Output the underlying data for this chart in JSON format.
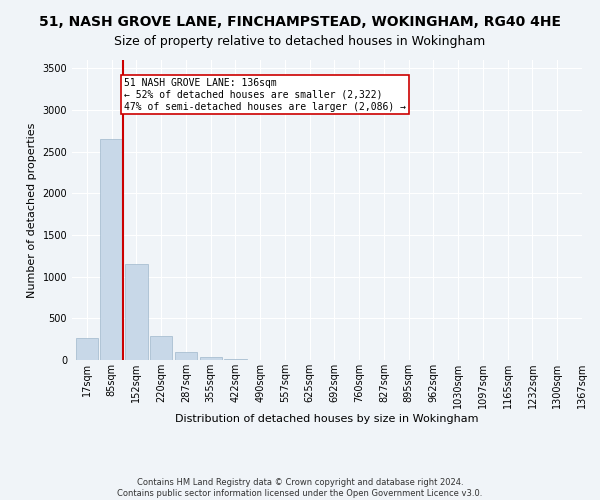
{
  "title1": "51, NASH GROVE LANE, FINCHAMPSTEAD, WOKINGHAM, RG40 4HE",
  "title2": "Size of property relative to detached houses in Wokingham",
  "xlabel": "Distribution of detached houses by size in Wokingham",
  "ylabel": "Number of detached properties",
  "footer1": "Contains HM Land Registry data © Crown copyright and database right 2024.",
  "footer2": "Contains public sector information licensed under the Open Government Licence v3.0.",
  "bins": [
    "17sqm",
    "85sqm",
    "152sqm",
    "220sqm",
    "287sqm",
    "355sqm",
    "422sqm",
    "490sqm",
    "557sqm",
    "625sqm",
    "692sqm",
    "760sqm",
    "827sqm",
    "895sqm",
    "962sqm",
    "1030sqm",
    "1097sqm",
    "1165sqm",
    "1232sqm",
    "1300sqm",
    "1367sqm"
  ],
  "values": [
    270,
    2650,
    1150,
    290,
    100,
    40,
    10,
    0,
    0,
    0,
    0,
    0,
    0,
    0,
    0,
    0,
    0,
    0,
    0,
    0
  ],
  "bar_color": "#c8d8e8",
  "bar_edge_color": "#a0b8cc",
  "property_line_color": "#cc0000",
  "annotation_text": "51 NASH GROVE LANE: 136sqm\n← 52% of detached houses are smaller (2,322)\n47% of semi-detached houses are larger (2,086) →",
  "annotation_box_color": "#ffffff",
  "annotation_box_edge": "#cc0000",
  "ylim": [
    0,
    3600
  ],
  "background_color": "#f0f4f8",
  "plot_bg_color": "#f0f4f8",
  "grid_color": "#ffffff",
  "title1_fontsize": 10,
  "title2_fontsize": 9,
  "axis_label_fontsize": 8,
  "tick_fontsize": 7,
  "annotation_fontsize": 7,
  "footer_fontsize": 6
}
